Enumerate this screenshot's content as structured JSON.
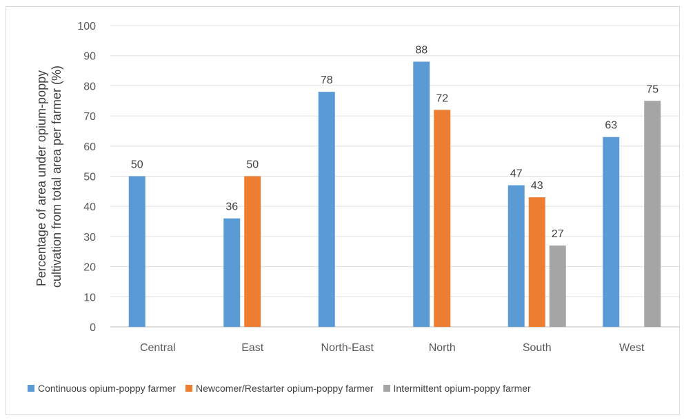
{
  "chart_data": {
    "type": "bar",
    "title": "",
    "xlabel": "",
    "ylabel_lines": [
      "Percentage of area under opium-poppy",
      "cultivation from total area per farmer (%)"
    ],
    "ylim": [
      0,
      100
    ],
    "yticks": [
      0,
      10,
      20,
      30,
      40,
      50,
      60,
      70,
      80,
      90,
      100
    ],
    "grid": "horizontal",
    "legend_position": "bottom",
    "categories": [
      "Central",
      "East",
      "North-East",
      "North",
      "South",
      "West"
    ],
    "series": [
      {
        "name": "Continuous opium-poppy farmer",
        "color": "#5B9BD5",
        "values": [
          50,
          36,
          78,
          88,
          47,
          63
        ]
      },
      {
        "name": "Newcomer/Restarter opium-poppy farmer",
        "color": "#ED7D31",
        "values": [
          null,
          50,
          null,
          72,
          43,
          null
        ]
      },
      {
        "name": "Intermittent opium-poppy farmer",
        "color": "#A5A5A5",
        "values": [
          null,
          null,
          null,
          null,
          27,
          75
        ]
      }
    ]
  }
}
